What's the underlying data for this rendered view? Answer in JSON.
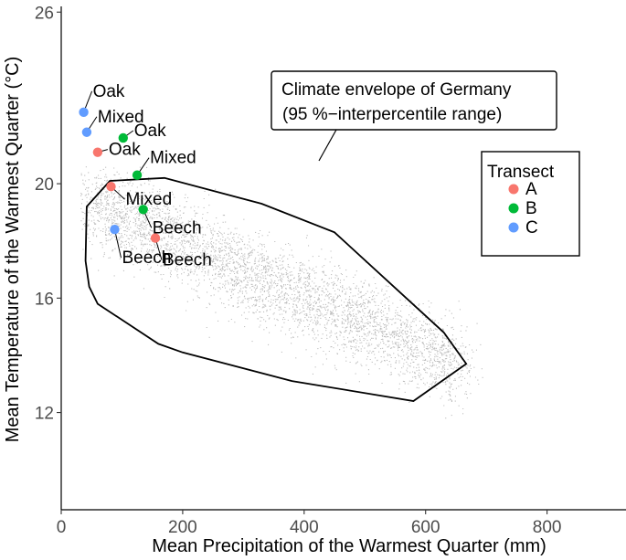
{
  "chart_data": {
    "type": "scatter",
    "xlabel": "Mean Precipitation of the Warmest Quarter (mm)",
    "ylabel": "Mean Temperature of the Warmest Quarter (°C)",
    "xlim": [
      0,
      930
    ],
    "ylim": [
      8.6,
      26.2
    ],
    "x_ticks": [
      0,
      200,
      400,
      600,
      800
    ],
    "y_ticks": [
      12,
      16,
      20,
      26
    ],
    "x_tick_labels": [
      "0",
      "200",
      "400",
      "600",
      "800"
    ],
    "y_tick_labels": [
      "12",
      "16",
      "20",
      "26"
    ],
    "grid": false,
    "background_cloud": {
      "color": "#bdbdbd",
      "description": "Dense grey point cloud of German climate grid cells"
    },
    "envelope": {
      "label": "Climate envelope of Germany (95 %−interpercentile range)",
      "label_lines": [
        "Climate envelope of Germany",
        "(95 %−interpercentile range)"
      ],
      "polygon": [
        [
          80,
          20.1
        ],
        [
          170,
          20.2
        ],
        [
          330,
          19.3
        ],
        [
          450,
          18.3
        ],
        [
          630,
          14.8
        ],
        [
          667,
          13.7
        ],
        [
          580,
          12.4
        ],
        [
          380,
          13.1
        ],
        [
          200,
          14.1
        ],
        [
          160,
          14.4
        ],
        [
          60,
          15.8
        ],
        [
          46,
          16.4
        ],
        [
          40,
          17.3
        ],
        [
          42,
          19.2
        ]
      ]
    },
    "legend": {
      "title": "Transect",
      "position": "right",
      "entries": [
        {
          "label": "A",
          "color": "#F8766D"
        },
        {
          "label": "B",
          "color": "#00BA38"
        },
        {
          "label": "C",
          "color": "#619CFF"
        }
      ]
    },
    "series": [
      {
        "name": "A",
        "color": "#F8766D",
        "points": [
          {
            "x": 60,
            "y": 21.1,
            "label": "Oak"
          },
          {
            "x": 82,
            "y": 19.9,
            "label": "Mixed"
          },
          {
            "x": 155,
            "y": 18.1,
            "label": "Beech"
          }
        ]
      },
      {
        "name": "B",
        "color": "#00BA38",
        "points": [
          {
            "x": 102,
            "y": 21.6,
            "label": "Oak"
          },
          {
            "x": 125,
            "y": 20.3,
            "label": "Mixed"
          },
          {
            "x": 135,
            "y": 19.1,
            "label": "Beech"
          }
        ]
      },
      {
        "name": "C",
        "color": "#619CFF",
        "points": [
          {
            "x": 37,
            "y": 22.5,
            "label": "Oak"
          },
          {
            "x": 42,
            "y": 21.8,
            "label": "Mixed"
          },
          {
            "x": 88,
            "y": 18.4,
            "label": "Beech"
          }
        ]
      }
    ]
  }
}
